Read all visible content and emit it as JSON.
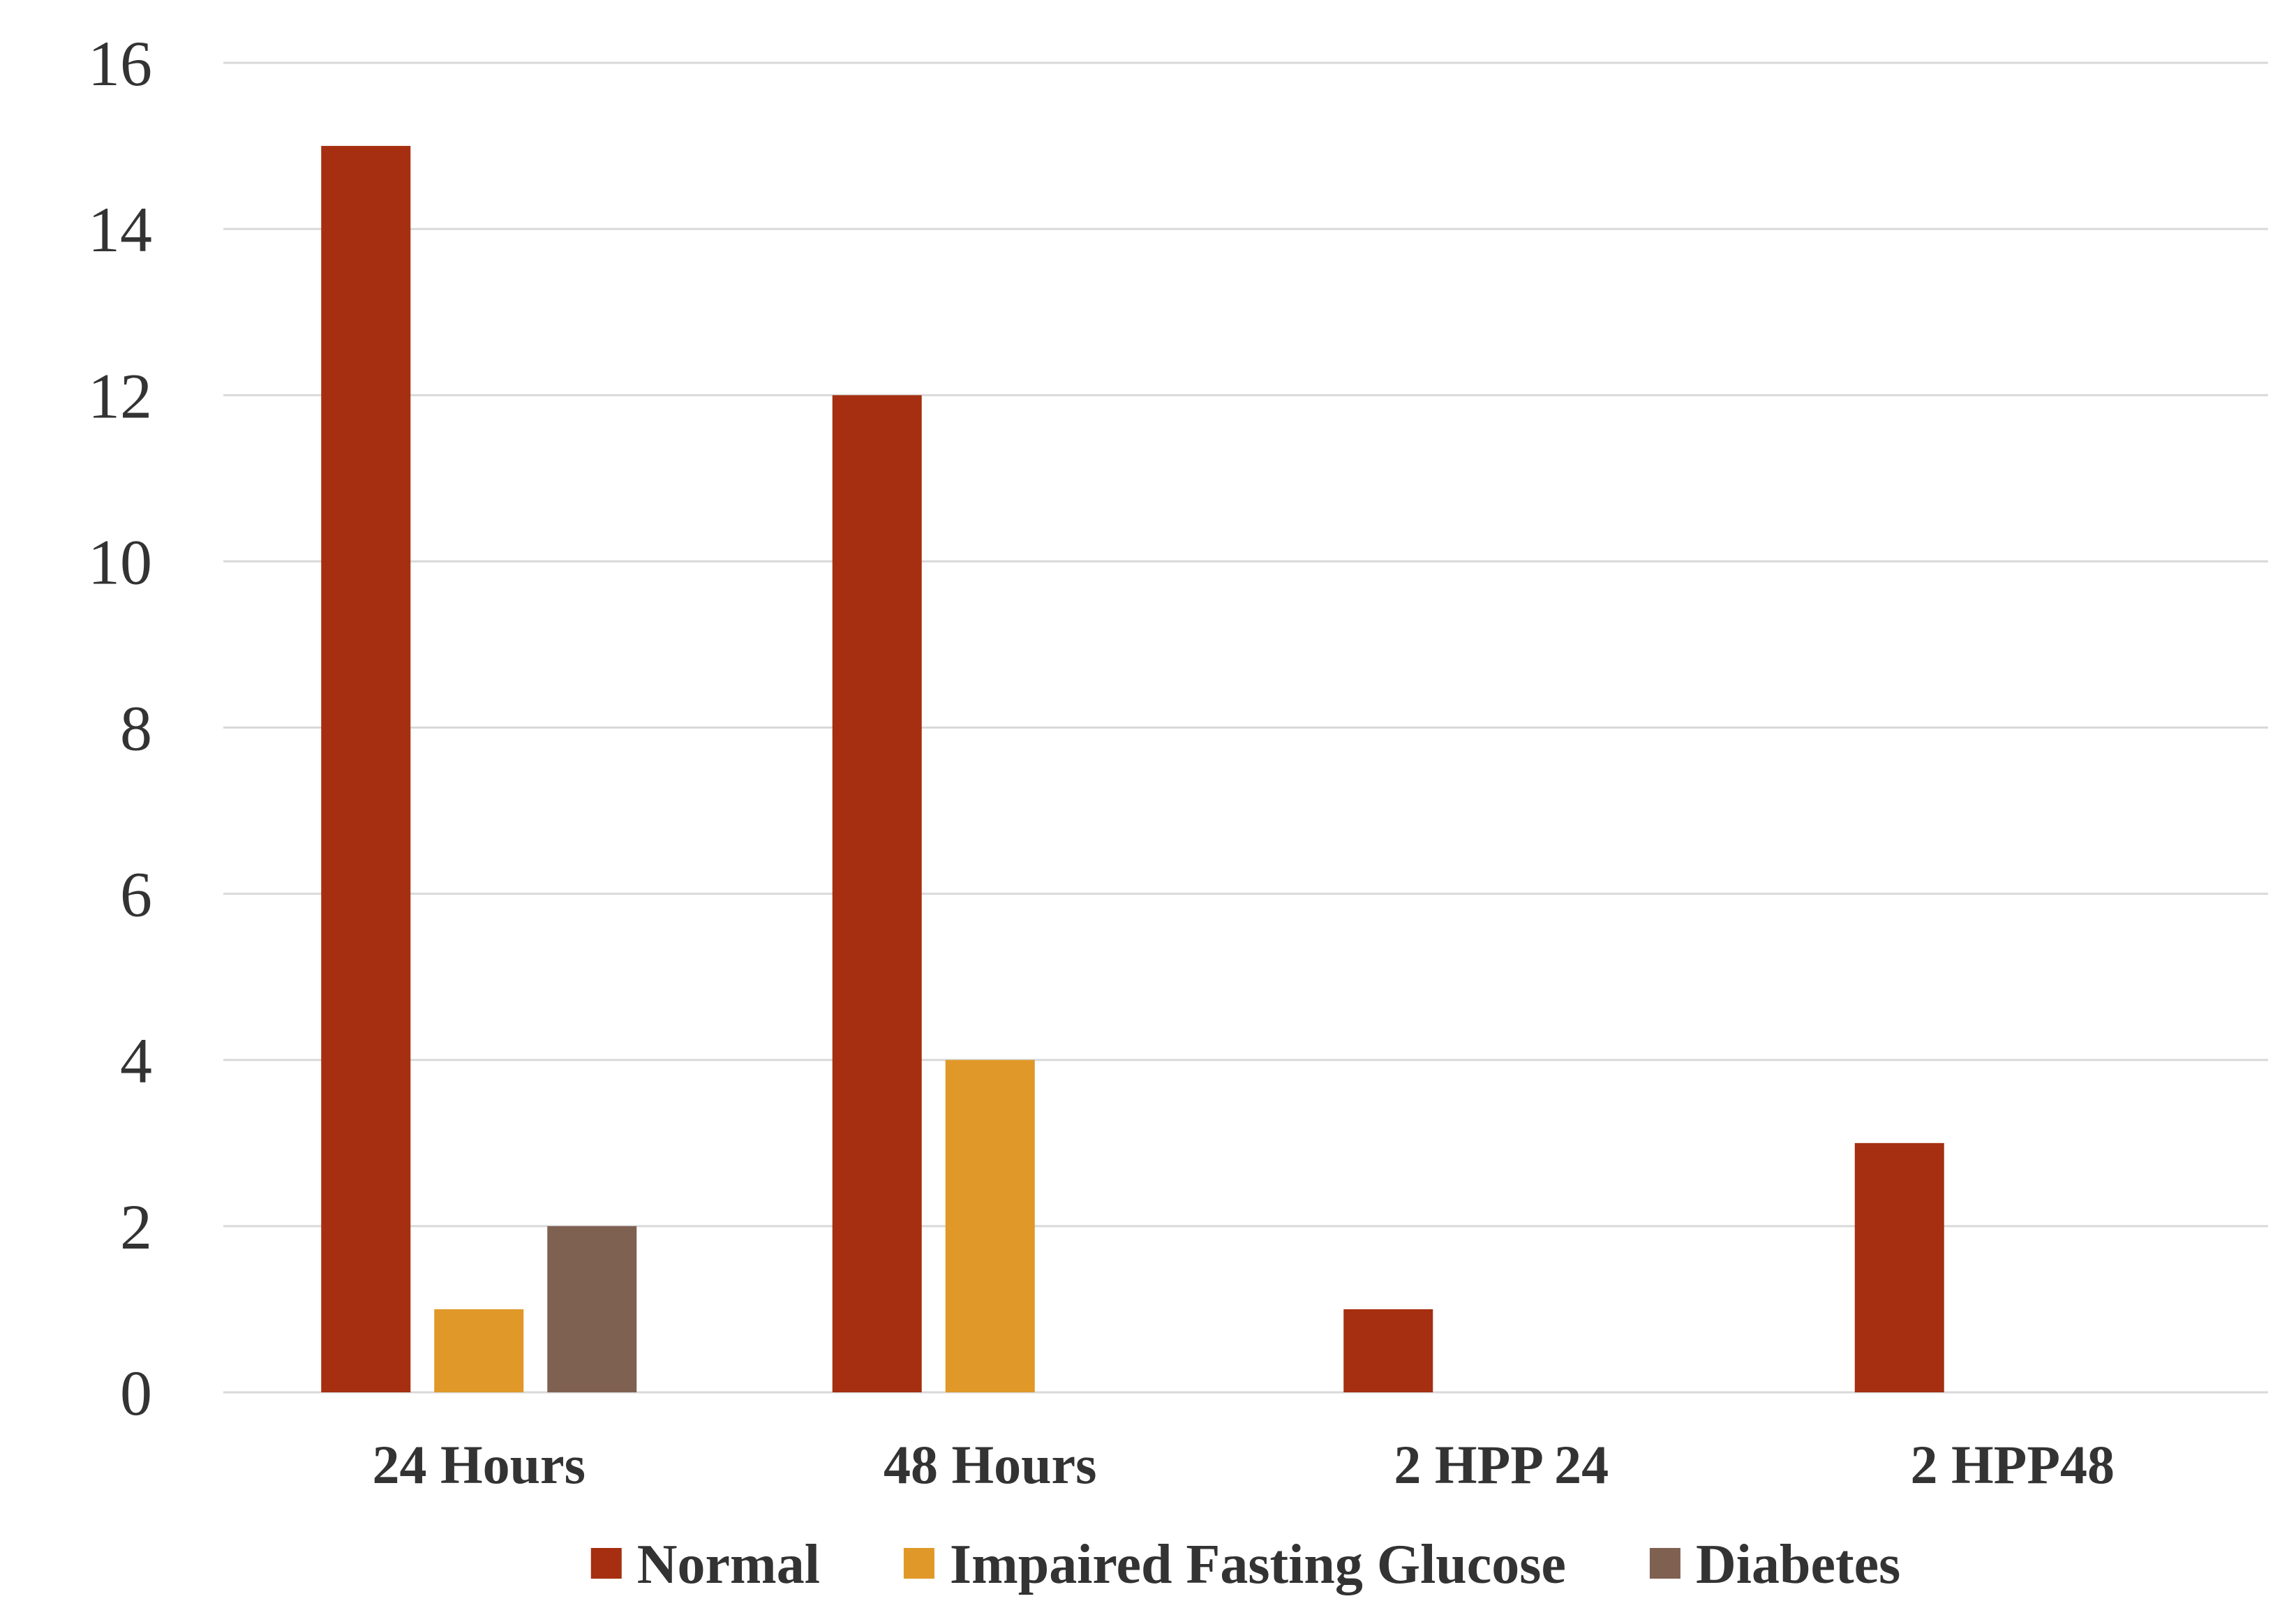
{
  "chart_data": {
    "type": "bar",
    "title": "",
    "xlabel": "",
    "ylabel": "",
    "categories": [
      "24 Hours",
      "48 Hours",
      "2 HPP 24",
      "2 HPP48"
    ],
    "series": [
      {
        "name": "Normal",
        "color": "#A52F10",
        "values": [
          15,
          12,
          1,
          3
        ]
      },
      {
        "name": "Impaired Fasting Glucose",
        "color": "#E09828",
        "values": [
          1,
          4,
          0,
          0
        ]
      },
      {
        "name": "Diabetes",
        "color": "#7F6152",
        "values": [
          2,
          0,
          0,
          0
        ]
      }
    ],
    "ylim": [
      0,
      16
    ],
    "yticks": [
      0,
      2,
      4,
      6,
      8,
      10,
      12,
      14,
      16
    ],
    "grid": true,
    "legend_position": "bottom-center",
    "colors": {
      "gridline": "#D9D9D9",
      "text": "#333333"
    }
  }
}
